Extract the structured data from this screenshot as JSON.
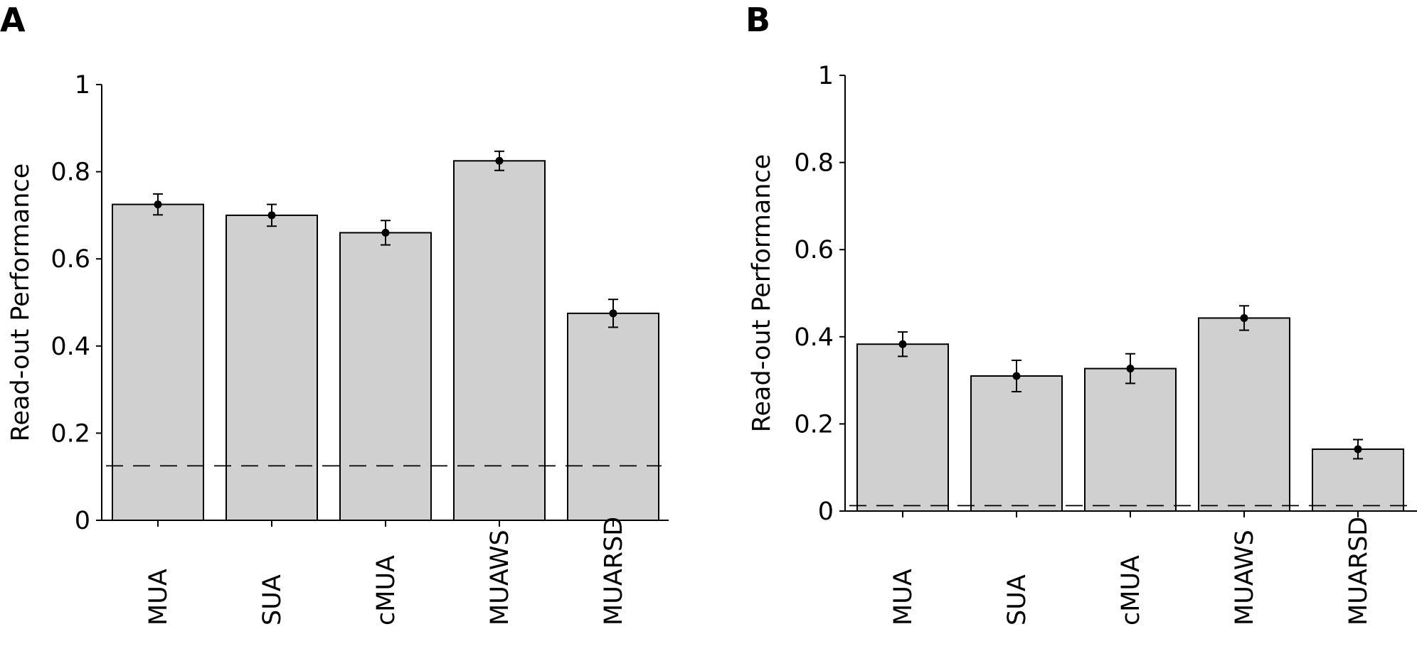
{
  "colors": {
    "bar_fill": "#d0d0d0",
    "stroke": "#000000",
    "background": "#ffffff"
  },
  "chart_data": [
    {
      "panel_label": "A",
      "type": "bar",
      "ylabel": "Read-out Performance",
      "xlabel": "",
      "ylim": [
        0,
        1
      ],
      "yticks": [
        "0",
        "0.2",
        "0.4",
        "0.6",
        "0.8",
        "1"
      ],
      "categories": [
        "MUA",
        "SUA",
        "cMUA",
        "MUAWS",
        "MUARSD"
      ],
      "values": [
        0.725,
        0.7,
        0.66,
        0.825,
        0.475
      ],
      "errors": [
        0.024,
        0.025,
        0.028,
        0.022,
        0.032
      ],
      "chance_level": 0.125,
      "grid": false
    },
    {
      "panel_label": "B",
      "type": "bar",
      "ylabel": "Read-out Performance",
      "xlabel": "",
      "ylim": [
        0,
        1
      ],
      "yticks": [
        "0",
        "0.2",
        "0.4",
        "0.6",
        "0.8",
        "1"
      ],
      "categories": [
        "MUA",
        "SUA",
        "cMUA",
        "MUAWS",
        "MUARSD"
      ],
      "values": [
        0.383,
        0.31,
        0.327,
        0.443,
        0.142
      ],
      "errors": [
        0.028,
        0.036,
        0.034,
        0.028,
        0.022
      ],
      "chance_level": 0.0125,
      "grid": false
    }
  ]
}
